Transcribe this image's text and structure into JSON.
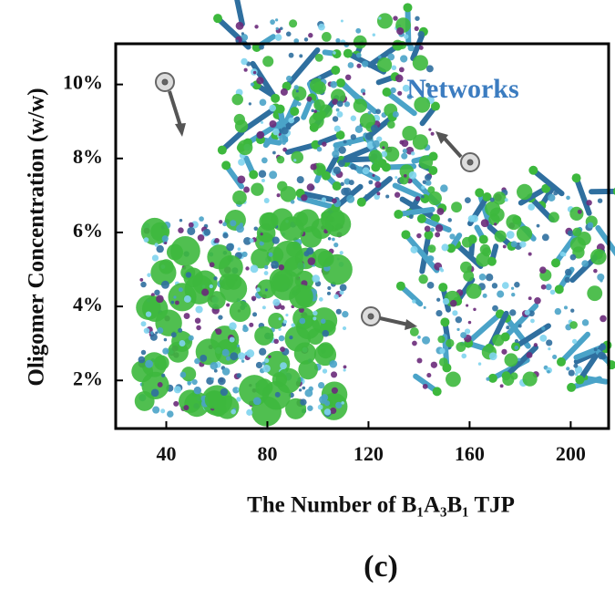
{
  "chart_data": {
    "type": "scatter",
    "x_label": "The Number of B₁A₃B₁ TJP",
    "y_label": "Oligomer Concentration (w/w)",
    "annotation": "Networks",
    "panel_label": "(c)",
    "xlim": [
      20,
      215
    ],
    "xticks": [
      40,
      80,
      120,
      160,
      200
    ],
    "ylim": [
      0.7,
      11.1
    ],
    "yticks": [
      {
        "value": 2,
        "label": "2%"
      },
      {
        "value": 4,
        "label": "4%"
      },
      {
        "value": 6,
        "label": "6%"
      },
      {
        "value": 8,
        "label": "8%"
      },
      {
        "value": 10,
        "label": "10%"
      }
    ]
  }
}
